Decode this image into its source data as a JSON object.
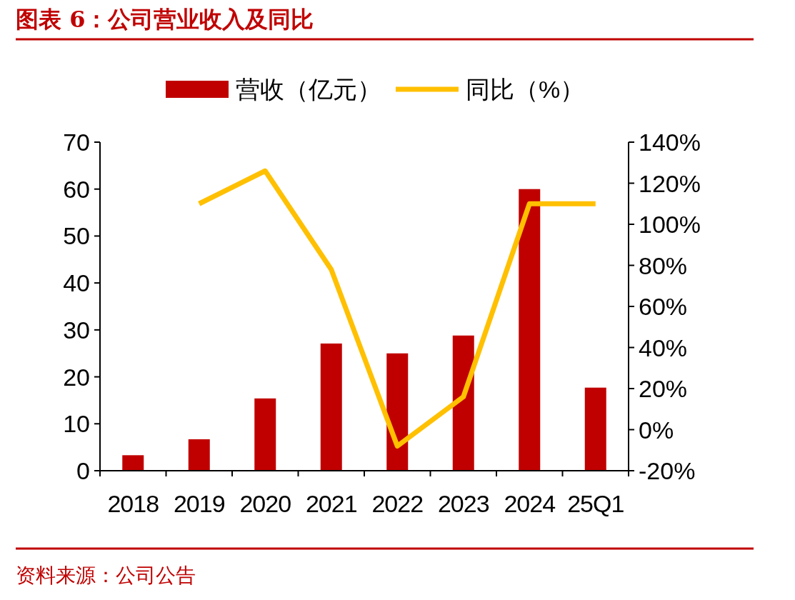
{
  "chart_data": {
    "type": "bar",
    "title": "图表 6：公司营业收入及同比",
    "categories": [
      "2018",
      "2019",
      "2020",
      "2021",
      "2022",
      "2023",
      "2024",
      "25Q1"
    ],
    "series": [
      {
        "name": "营收（亿元）",
        "color": "#c00000",
        "values": [
          3.3,
          6.7,
          15.4,
          27.1,
          25.0,
          28.8,
          60.0,
          17.7
        ]
      },
      {
        "name": "同比（%）",
        "type": "line",
        "axis": "y2",
        "color": "#ffc000",
        "values": [
          null,
          110,
          126,
          78,
          -8,
          16,
          110,
          110
        ]
      }
    ],
    "ylim": [
      0,
      70
    ],
    "yticks": [
      0,
      10,
      20,
      30,
      40,
      50,
      60,
      70
    ],
    "y2lim": [
      -20,
      140
    ],
    "y2ticks": [
      {
        "value": -20,
        "label": "-20%"
      },
      {
        "value": 0,
        "label": "0%"
      },
      {
        "value": 20,
        "label": "20%"
      },
      {
        "value": 40,
        "label": "40%"
      },
      {
        "value": 60,
        "label": "60%"
      },
      {
        "value": 80,
        "label": "80%"
      },
      {
        "value": 100,
        "label": "100%"
      },
      {
        "value": 120,
        "label": "120%"
      },
      {
        "value": 140,
        "label": "140%"
      }
    ],
    "legend": "top",
    "grid": false,
    "annotations": [
      "资料来源：公司公告"
    ]
  }
}
